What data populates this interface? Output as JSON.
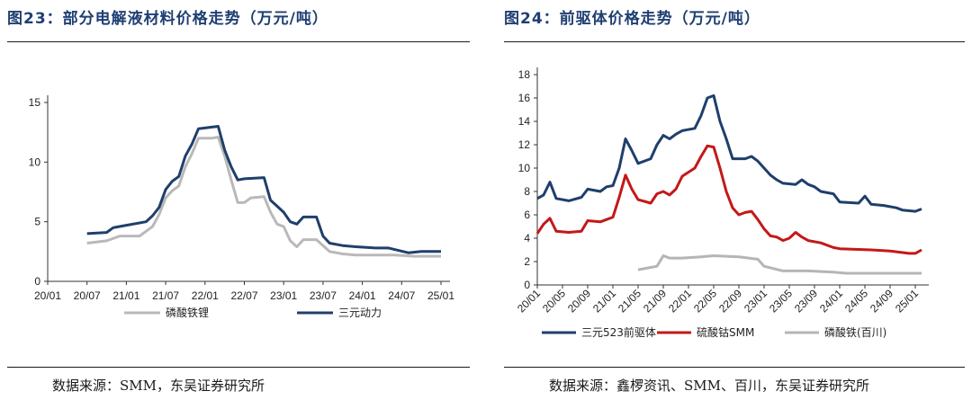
{
  "left": {
    "title": "图23：部分电解液材料价格走势（万元/吨）",
    "source": "数据来源：SMM，东吴证券研究所"
  },
  "right": {
    "title": "图24：前驱体价格走势（万元/吨）",
    "source": "数据来源：鑫椤资讯、SMM、百川，东吴证券研究所"
  },
  "chart_data": [
    {
      "type": "line",
      "x_start": "2020-07",
      "x_end": "2025-01",
      "x_ticks": [
        "20/01",
        "20/07",
        "21/01",
        "21/07",
        "22/01",
        "22/07",
        "23/01",
        "23/07",
        "24/01",
        "24/07",
        "25/01"
      ],
      "ylim": [
        0,
        15
      ],
      "y_ticks": [
        0,
        5,
        10,
        15
      ],
      "legend_position": "bottom",
      "series": [
        {
          "name": "磷酸铁锂",
          "color": "#b9b9b9",
          "points": [
            [
              "2020-07",
              3.2
            ],
            [
              "2020-10",
              3.4
            ],
            [
              "2020-12",
              3.8
            ],
            [
              "2021-03",
              3.8
            ],
            [
              "2021-04",
              4.2
            ],
            [
              "2021-05",
              4.6
            ],
            [
              "2021-06",
              5.6
            ],
            [
              "2021-07",
              7.0
            ],
            [
              "2021-08",
              7.6
            ],
            [
              "2021-09",
              8.0
            ],
            [
              "2021-10",
              9.6
            ],
            [
              "2021-11",
              10.7
            ],
            [
              "2021-12",
              12.0
            ],
            [
              "2022-02",
              12.0
            ],
            [
              "2022-03",
              12.1
            ],
            [
              "2022-04",
              10.5
            ],
            [
              "2022-05",
              8.5
            ],
            [
              "2022-06",
              6.6
            ],
            [
              "2022-07",
              6.6
            ],
            [
              "2022-08",
              7.0
            ],
            [
              "2022-10",
              7.1
            ],
            [
              "2022-11",
              5.8
            ],
            [
              "2022-12",
              4.8
            ],
            [
              "2023-01",
              4.6
            ],
            [
              "2023-02",
              3.4
            ],
            [
              "2023-03",
              2.9
            ],
            [
              "2023-04",
              3.5
            ],
            [
              "2023-06",
              3.5
            ],
            [
              "2023-07",
              3.0
            ],
            [
              "2023-08",
              2.5
            ],
            [
              "2023-10",
              2.3
            ],
            [
              "2023-12",
              2.2
            ],
            [
              "2024-06",
              2.2
            ],
            [
              "2024-09",
              2.1
            ],
            [
              "2025-01",
              2.1
            ]
          ]
        },
        {
          "name": "三元动力",
          "color": "#1f3f6b",
          "points": [
            [
              "2020-07",
              4.0
            ],
            [
              "2020-10",
              4.1
            ],
            [
              "2020-11",
              4.5
            ],
            [
              "2021-01",
              4.7
            ],
            [
              "2021-04",
              5.0
            ],
            [
              "2021-05",
              5.5
            ],
            [
              "2021-06",
              6.2
            ],
            [
              "2021-07",
              7.7
            ],
            [
              "2021-08",
              8.4
            ],
            [
              "2021-09",
              8.8
            ],
            [
              "2021-10",
              10.5
            ],
            [
              "2021-11",
              11.5
            ],
            [
              "2021-12",
              12.8
            ],
            [
              "2022-03",
              13.0
            ],
            [
              "2022-04",
              11.0
            ],
            [
              "2022-05",
              9.6
            ],
            [
              "2022-06",
              8.5
            ],
            [
              "2022-07",
              8.6
            ],
            [
              "2022-10",
              8.7
            ],
            [
              "2022-11",
              6.8
            ],
            [
              "2022-12",
              6.3
            ],
            [
              "2023-01",
              5.8
            ],
            [
              "2023-02",
              5.0
            ],
            [
              "2023-03",
              4.8
            ],
            [
              "2023-04",
              5.4
            ],
            [
              "2023-06",
              5.4
            ],
            [
              "2023-07",
              3.8
            ],
            [
              "2023-08",
              3.2
            ],
            [
              "2023-10",
              3.0
            ],
            [
              "2023-12",
              2.9
            ],
            [
              "2024-03",
              2.8
            ],
            [
              "2024-05",
              2.8
            ],
            [
              "2024-08",
              2.4
            ],
            [
              "2024-10",
              2.5
            ],
            [
              "2025-01",
              2.5
            ]
          ]
        }
      ]
    },
    {
      "type": "line",
      "x_start": "2020-01",
      "x_end": "2025-02",
      "x_ticks": [
        "20/01",
        "20/05",
        "20/09",
        "21/01",
        "21/05",
        "21/09",
        "22/01",
        "22/05",
        "22/09",
        "23/01",
        "23/05",
        "23/09",
        "24/01",
        "24/05",
        "24/09",
        "25/01"
      ],
      "ylim": [
        0,
        18
      ],
      "y_ticks": [
        0,
        2,
        4,
        6,
        8,
        10,
        12,
        14,
        16,
        18
      ],
      "legend_position": "bottom",
      "series": [
        {
          "name": "三元523前驱体",
          "color": "#1f3f6b",
          "points": [
            [
              "2020-01",
              7.4
            ],
            [
              "2020-02",
              7.7
            ],
            [
              "2020-03",
              8.8
            ],
            [
              "2020-04",
              7.4
            ],
            [
              "2020-06",
              7.2
            ],
            [
              "2020-08",
              7.5
            ],
            [
              "2020-09",
              8.2
            ],
            [
              "2020-11",
              8.0
            ],
            [
              "2020-12",
              8.4
            ],
            [
              "2021-01",
              8.5
            ],
            [
              "2021-02",
              10.0
            ],
            [
              "2021-03",
              12.5
            ],
            [
              "2021-04",
              11.5
            ],
            [
              "2021-05",
              10.4
            ],
            [
              "2021-07",
              10.8
            ],
            [
              "2021-08",
              12.0
            ],
            [
              "2021-09",
              12.8
            ],
            [
              "2021-10",
              12.5
            ],
            [
              "2021-11",
              12.9
            ],
            [
              "2021-12",
              13.2
            ],
            [
              "2022-02",
              13.4
            ],
            [
              "2022-03",
              14.5
            ],
            [
              "2022-04",
              16.0
            ],
            [
              "2022-05",
              16.2
            ],
            [
              "2022-06",
              14.0
            ],
            [
              "2022-07",
              12.5
            ],
            [
              "2022-08",
              10.8
            ],
            [
              "2022-10",
              10.8
            ],
            [
              "2022-11",
              11.0
            ],
            [
              "2022-12",
              10.6
            ],
            [
              "2023-01",
              10.0
            ],
            [
              "2023-02",
              9.4
            ],
            [
              "2023-03",
              9.0
            ],
            [
              "2023-04",
              8.7
            ],
            [
              "2023-06",
              8.6
            ],
            [
              "2023-07",
              9.0
            ],
            [
              "2023-08",
              8.6
            ],
            [
              "2023-09",
              8.4
            ],
            [
              "2023-10",
              8.0
            ],
            [
              "2023-12",
              7.8
            ],
            [
              "2024-01",
              7.1
            ],
            [
              "2024-04",
              7.0
            ],
            [
              "2024-05",
              7.6
            ],
            [
              "2024-06",
              6.9
            ],
            [
              "2024-08",
              6.8
            ],
            [
              "2024-10",
              6.6
            ],
            [
              "2024-11",
              6.4
            ],
            [
              "2025-01",
              6.3
            ],
            [
              "2025-02",
              6.5
            ]
          ]
        },
        {
          "name": "硫酸钴SMM",
          "color": "#c41818",
          "points": [
            [
              "2020-01",
              4.4
            ],
            [
              "2020-02",
              5.2
            ],
            [
              "2020-03",
              5.7
            ],
            [
              "2020-04",
              4.6
            ],
            [
              "2020-06",
              4.5
            ],
            [
              "2020-08",
              4.6
            ],
            [
              "2020-09",
              5.5
            ],
            [
              "2020-11",
              5.4
            ],
            [
              "2020-12",
              5.6
            ],
            [
              "2021-01",
              5.8
            ],
            [
              "2021-02",
              7.5
            ],
            [
              "2021-03",
              9.4
            ],
            [
              "2021-04",
              8.2
            ],
            [
              "2021-05",
              7.3
            ],
            [
              "2021-07",
              7.0
            ],
            [
              "2021-08",
              7.8
            ],
            [
              "2021-09",
              8.0
            ],
            [
              "2021-10",
              7.7
            ],
            [
              "2021-11",
              8.2
            ],
            [
              "2021-12",
              9.3
            ],
            [
              "2022-02",
              10.0
            ],
            [
              "2022-03",
              11.0
            ],
            [
              "2022-04",
              11.9
            ],
            [
              "2022-05",
              11.8
            ],
            [
              "2022-06",
              10.0
            ],
            [
              "2022-07",
              8.0
            ],
            [
              "2022-08",
              6.6
            ],
            [
              "2022-09",
              6.0
            ],
            [
              "2022-10",
              6.2
            ],
            [
              "2022-11",
              6.3
            ],
            [
              "2022-12",
              5.6
            ],
            [
              "2023-01",
              4.8
            ],
            [
              "2023-02",
              4.2
            ],
            [
              "2023-03",
              4.1
            ],
            [
              "2023-04",
              3.8
            ],
            [
              "2023-05",
              4.0
            ],
            [
              "2023-06",
              4.5
            ],
            [
              "2023-07",
              4.1
            ],
            [
              "2023-08",
              3.8
            ],
            [
              "2023-10",
              3.6
            ],
            [
              "2023-12",
              3.2
            ],
            [
              "2024-01",
              3.1
            ],
            [
              "2024-06",
              3.0
            ],
            [
              "2024-09",
              2.9
            ],
            [
              "2024-12",
              2.7
            ],
            [
              "2025-01",
              2.7
            ],
            [
              "2025-02",
              3.0
            ]
          ]
        },
        {
          "name": "磷酸铁(百川)",
          "color": "#b5b5b5",
          "points": [
            [
              "2021-05",
              1.3
            ],
            [
              "2021-07",
              1.5
            ],
            [
              "2021-08",
              1.6
            ],
            [
              "2021-09",
              2.5
            ],
            [
              "2021-10",
              2.3
            ],
            [
              "2021-12",
              2.3
            ],
            [
              "2022-03",
              2.4
            ],
            [
              "2022-05",
              2.5
            ],
            [
              "2022-09",
              2.4
            ],
            [
              "2022-12",
              2.2
            ],
            [
              "2023-01",
              1.6
            ],
            [
              "2023-04",
              1.2
            ],
            [
              "2023-08",
              1.2
            ],
            [
              "2023-12",
              1.1
            ],
            [
              "2024-02",
              1.0
            ],
            [
              "2025-02",
              1.0
            ]
          ]
        }
      ]
    }
  ]
}
